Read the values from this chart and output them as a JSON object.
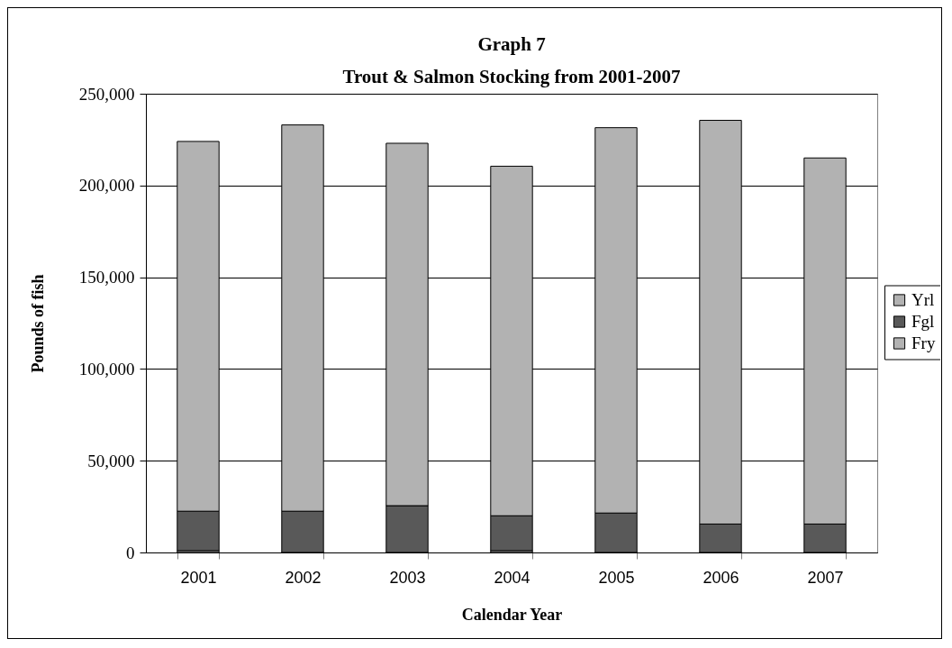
{
  "chart_data": {
    "type": "bar",
    "title": "Graph 7",
    "subtitle": "Trout & Salmon Stocking from 2001-2007",
    "xlabel": "Calendar Year",
    "ylabel": "Pounds of fish",
    "categories": [
      "2001",
      "2002",
      "2003",
      "2004",
      "2005",
      "2006",
      "2007"
    ],
    "stacked": true,
    "series": [
      {
        "name": "Fry",
        "color": "#b2b2b2",
        "values": [
          1000,
          0,
          0,
          1000,
          0,
          0,
          0
        ]
      },
      {
        "name": "Fgl",
        "color": "#595959",
        "values": [
          21500,
          22500,
          25500,
          19000,
          21500,
          15500,
          15500
        ]
      },
      {
        "name": "Yrl",
        "color": "#b2b2b2",
        "values": [
          201500,
          210500,
          197500,
          190500,
          210000,
          220000,
          199500
        ]
      }
    ],
    "ylim": [
      0,
      250000
    ],
    "yticks": [
      0,
      {
        "value": 50000,
        "label": "50,000"
      },
      {
        "value": 100000,
        "label": "100,000"
      },
      {
        "value": 150000,
        "label": "150,000"
      },
      {
        "value": 200000,
        "label": "200,000"
      },
      {
        "value": 250000,
        "label": "250,000"
      }
    ],
    "grid": "y",
    "legend": "right"
  }
}
